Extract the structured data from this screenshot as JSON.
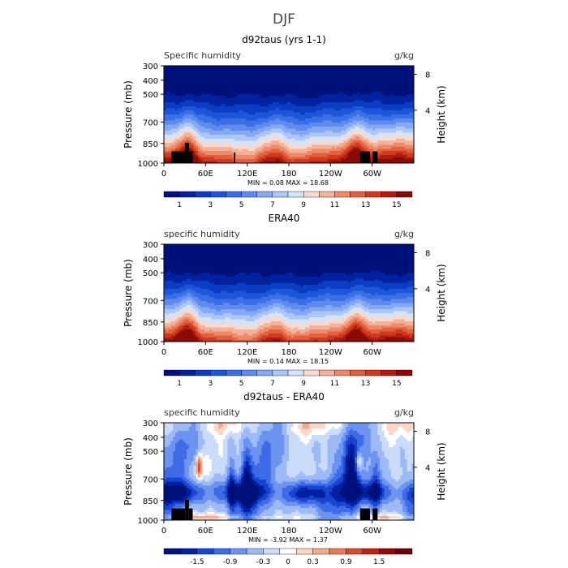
{
  "figure_title": "DJF",
  "chart_data": [
    {
      "type": "heatmap",
      "title": "d92taus (yrs 1-1)",
      "left_label": "Specific humidity",
      "right_label": "g/kg",
      "ylabel": "Pressure (mb)",
      "ylabel_right": "Height (km)",
      "x_ticks": [
        "0",
        "60E",
        "120E",
        "180",
        "120W",
        "60W"
      ],
      "y_ticks": [
        "300",
        "400",
        "500",
        "700",
        "850",
        "1000"
      ],
      "y_right_ticks": [
        "8",
        "4"
      ],
      "stats": "MIN =     0.08   MAX =    18.68",
      "min": 0.08,
      "max": 18.68,
      "colorbar_labels": [
        "1",
        "3",
        "5",
        "7",
        "9",
        "11",
        "13",
        "15"
      ],
      "levels": [
        0,
        1,
        2,
        3,
        4,
        5,
        6,
        7,
        8,
        9,
        10,
        11,
        12,
        13,
        14,
        15,
        16
      ],
      "field": "humidity",
      "mask": true
    },
    {
      "type": "heatmap",
      "title": "ERA40",
      "left_label": "specific humidity",
      "right_label": "g/kg",
      "ylabel": "Pressure (mb)",
      "ylabel_right": "Height (km)",
      "x_ticks": [
        "0",
        "60E",
        "120E",
        "180",
        "120W",
        "60W"
      ],
      "y_ticks": [
        "300",
        "400",
        "500",
        "700",
        "850",
        "1000"
      ],
      "y_right_ticks": [
        "8",
        "4"
      ],
      "stats": "MIN =     0.14   MAX =    18.15",
      "min": 0.14,
      "max": 18.15,
      "colorbar_labels": [
        "1",
        "3",
        "5",
        "7",
        "9",
        "11",
        "13",
        "15"
      ],
      "levels": [
        0,
        1,
        2,
        3,
        4,
        5,
        6,
        7,
        8,
        9,
        10,
        11,
        12,
        13,
        14,
        15,
        16
      ],
      "field": "humidity",
      "mask": false
    },
    {
      "type": "heatmap",
      "title": "d92taus - ERA40",
      "left_label": "specific humidity",
      "right_label": "g/kg",
      "ylabel": "Pressure (mb)",
      "ylabel_right": "Height (km)",
      "x_ticks": [
        "0",
        "60E",
        "120E",
        "180",
        "120W",
        "60W"
      ],
      "y_ticks": [
        "300",
        "400",
        "500",
        "700",
        "850",
        "1000"
      ],
      "y_right_ticks": [
        "8",
        "4"
      ],
      "stats": "MIN =    -3.92   MAX =     1.37",
      "min": -3.92,
      "max": 1.37,
      "colorbar_labels": [
        "-1.5",
        "-0.9",
        "-0.3",
        "0",
        "0.3",
        "0.9",
        "1.5"
      ],
      "levels": [
        -2.1,
        -1.8,
        -1.5,
        -1.2,
        -0.9,
        -0.6,
        -0.3,
        -0.1,
        0.1,
        0.3,
        0.6,
        0.9,
        1.2,
        1.5,
        1.8,
        2.1
      ],
      "field": "difference",
      "mask": true
    }
  ],
  "colors": {
    "humidity_ramp": [
      "#00107a",
      "#00229e",
      "#0a3cc4",
      "#1c56d9",
      "#3a6fe6",
      "#5e8bee",
      "#84a8f3",
      "#adc6f8",
      "#d4e2fb",
      "#f6d9cf",
      "#f3b299",
      "#ee8a68",
      "#e2603f",
      "#cf3b1f",
      "#b01c0d",
      "#8a0a06"
    ],
    "difference_ramp": [
      "#00107a",
      "#0020a4",
      "#1845d0",
      "#3f6be6",
      "#6d93f0",
      "#9dbaf6",
      "#cbdcfb",
      "#ffffff",
      "#fbd6c9",
      "#f2a98c",
      "#e77c58",
      "#d54f2d",
      "#b8260f",
      "#8f0c06",
      "#6a0402"
    ],
    "mask": "#000000"
  }
}
